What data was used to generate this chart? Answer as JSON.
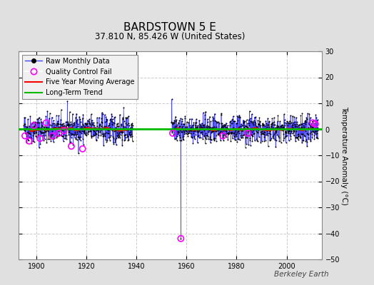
{
  "title": "BARDSTOWN 5 E",
  "subtitle": "37.810 N, 85.426 W (United States)",
  "ylabel": "Temperature Anomaly (°C)",
  "watermark": "Berkeley Earth",
  "xlim": [
    1893,
    2014
  ],
  "ylim": [
    -50,
    30
  ],
  "yticks": [
    -50,
    -40,
    -30,
    -20,
    -10,
    0,
    10,
    20,
    30
  ],
  "xticks": [
    1900,
    1920,
    1940,
    1960,
    1980,
    2000
  ],
  "background_color": "#e0e0e0",
  "plot_bg_color": "#ffffff",
  "raw_color": "#4444ff",
  "raw_dot_color": "#000000",
  "ma_color": "#ff0000",
  "trend_color": "#00bb00",
  "qc_color": "#ff00ff",
  "grid_color": "#cccccc",
  "segment1_start": 1895.0,
  "segment1_end": 1938.5,
  "segment2_start": 1954.0,
  "segment2_end": 2012.5,
  "outlier_year": 1957.75,
  "outlier_value": -42.0,
  "seed": 42,
  "legend_loc": "upper left",
  "title_fontsize": 11,
  "subtitle_fontsize": 8.5,
  "ylabel_fontsize": 7.5,
  "tick_fontsize": 7,
  "legend_fontsize": 7,
  "watermark_fontsize": 7.5
}
